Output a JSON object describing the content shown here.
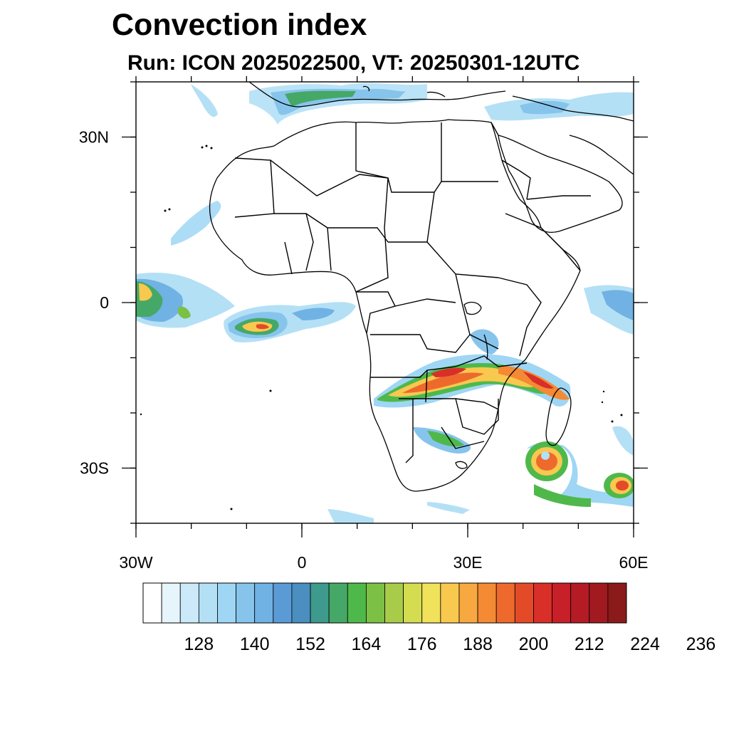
{
  "title": "Convection index",
  "subtitle": "Run: ICON 2025022500,  VT: 20250301-12UTC",
  "map": {
    "lon_range": [
      -30,
      60
    ],
    "lat_range": [
      -40,
      40
    ],
    "x_ticks": [
      {
        "value": -30,
        "label": "30W"
      },
      {
        "value": 0,
        "label": "0"
      },
      {
        "value": 30,
        "label": "30E"
      },
      {
        "value": 60,
        "label": "60E"
      }
    ],
    "y_ticks": [
      {
        "value": 30,
        "label": "30N"
      },
      {
        "value": 0,
        "label": "0"
      },
      {
        "value": -30,
        "label": "30S"
      }
    ]
  },
  "colorbar": {
    "colors": [
      "#ffffff",
      "#e6f4fc",
      "#cbe9f8",
      "#b4e0f6",
      "#9fd6f4",
      "#86c4ec",
      "#70b2e3",
      "#5b9bd5",
      "#4a8fc0",
      "#3e9a8c",
      "#45a866",
      "#4fb84b",
      "#7cc045",
      "#a8cc4a",
      "#d4dc50",
      "#f0e25a",
      "#f8c84f",
      "#f7a840",
      "#f48a33",
      "#ed6a2c",
      "#e34b28",
      "#d82f29",
      "#c72029",
      "#b51b25",
      "#a01a20",
      "#8b1a1a"
    ],
    "labels": [
      "128",
      "140",
      "152",
      "164",
      "176",
      "188",
      "200",
      "212",
      "224",
      "236"
    ]
  }
}
